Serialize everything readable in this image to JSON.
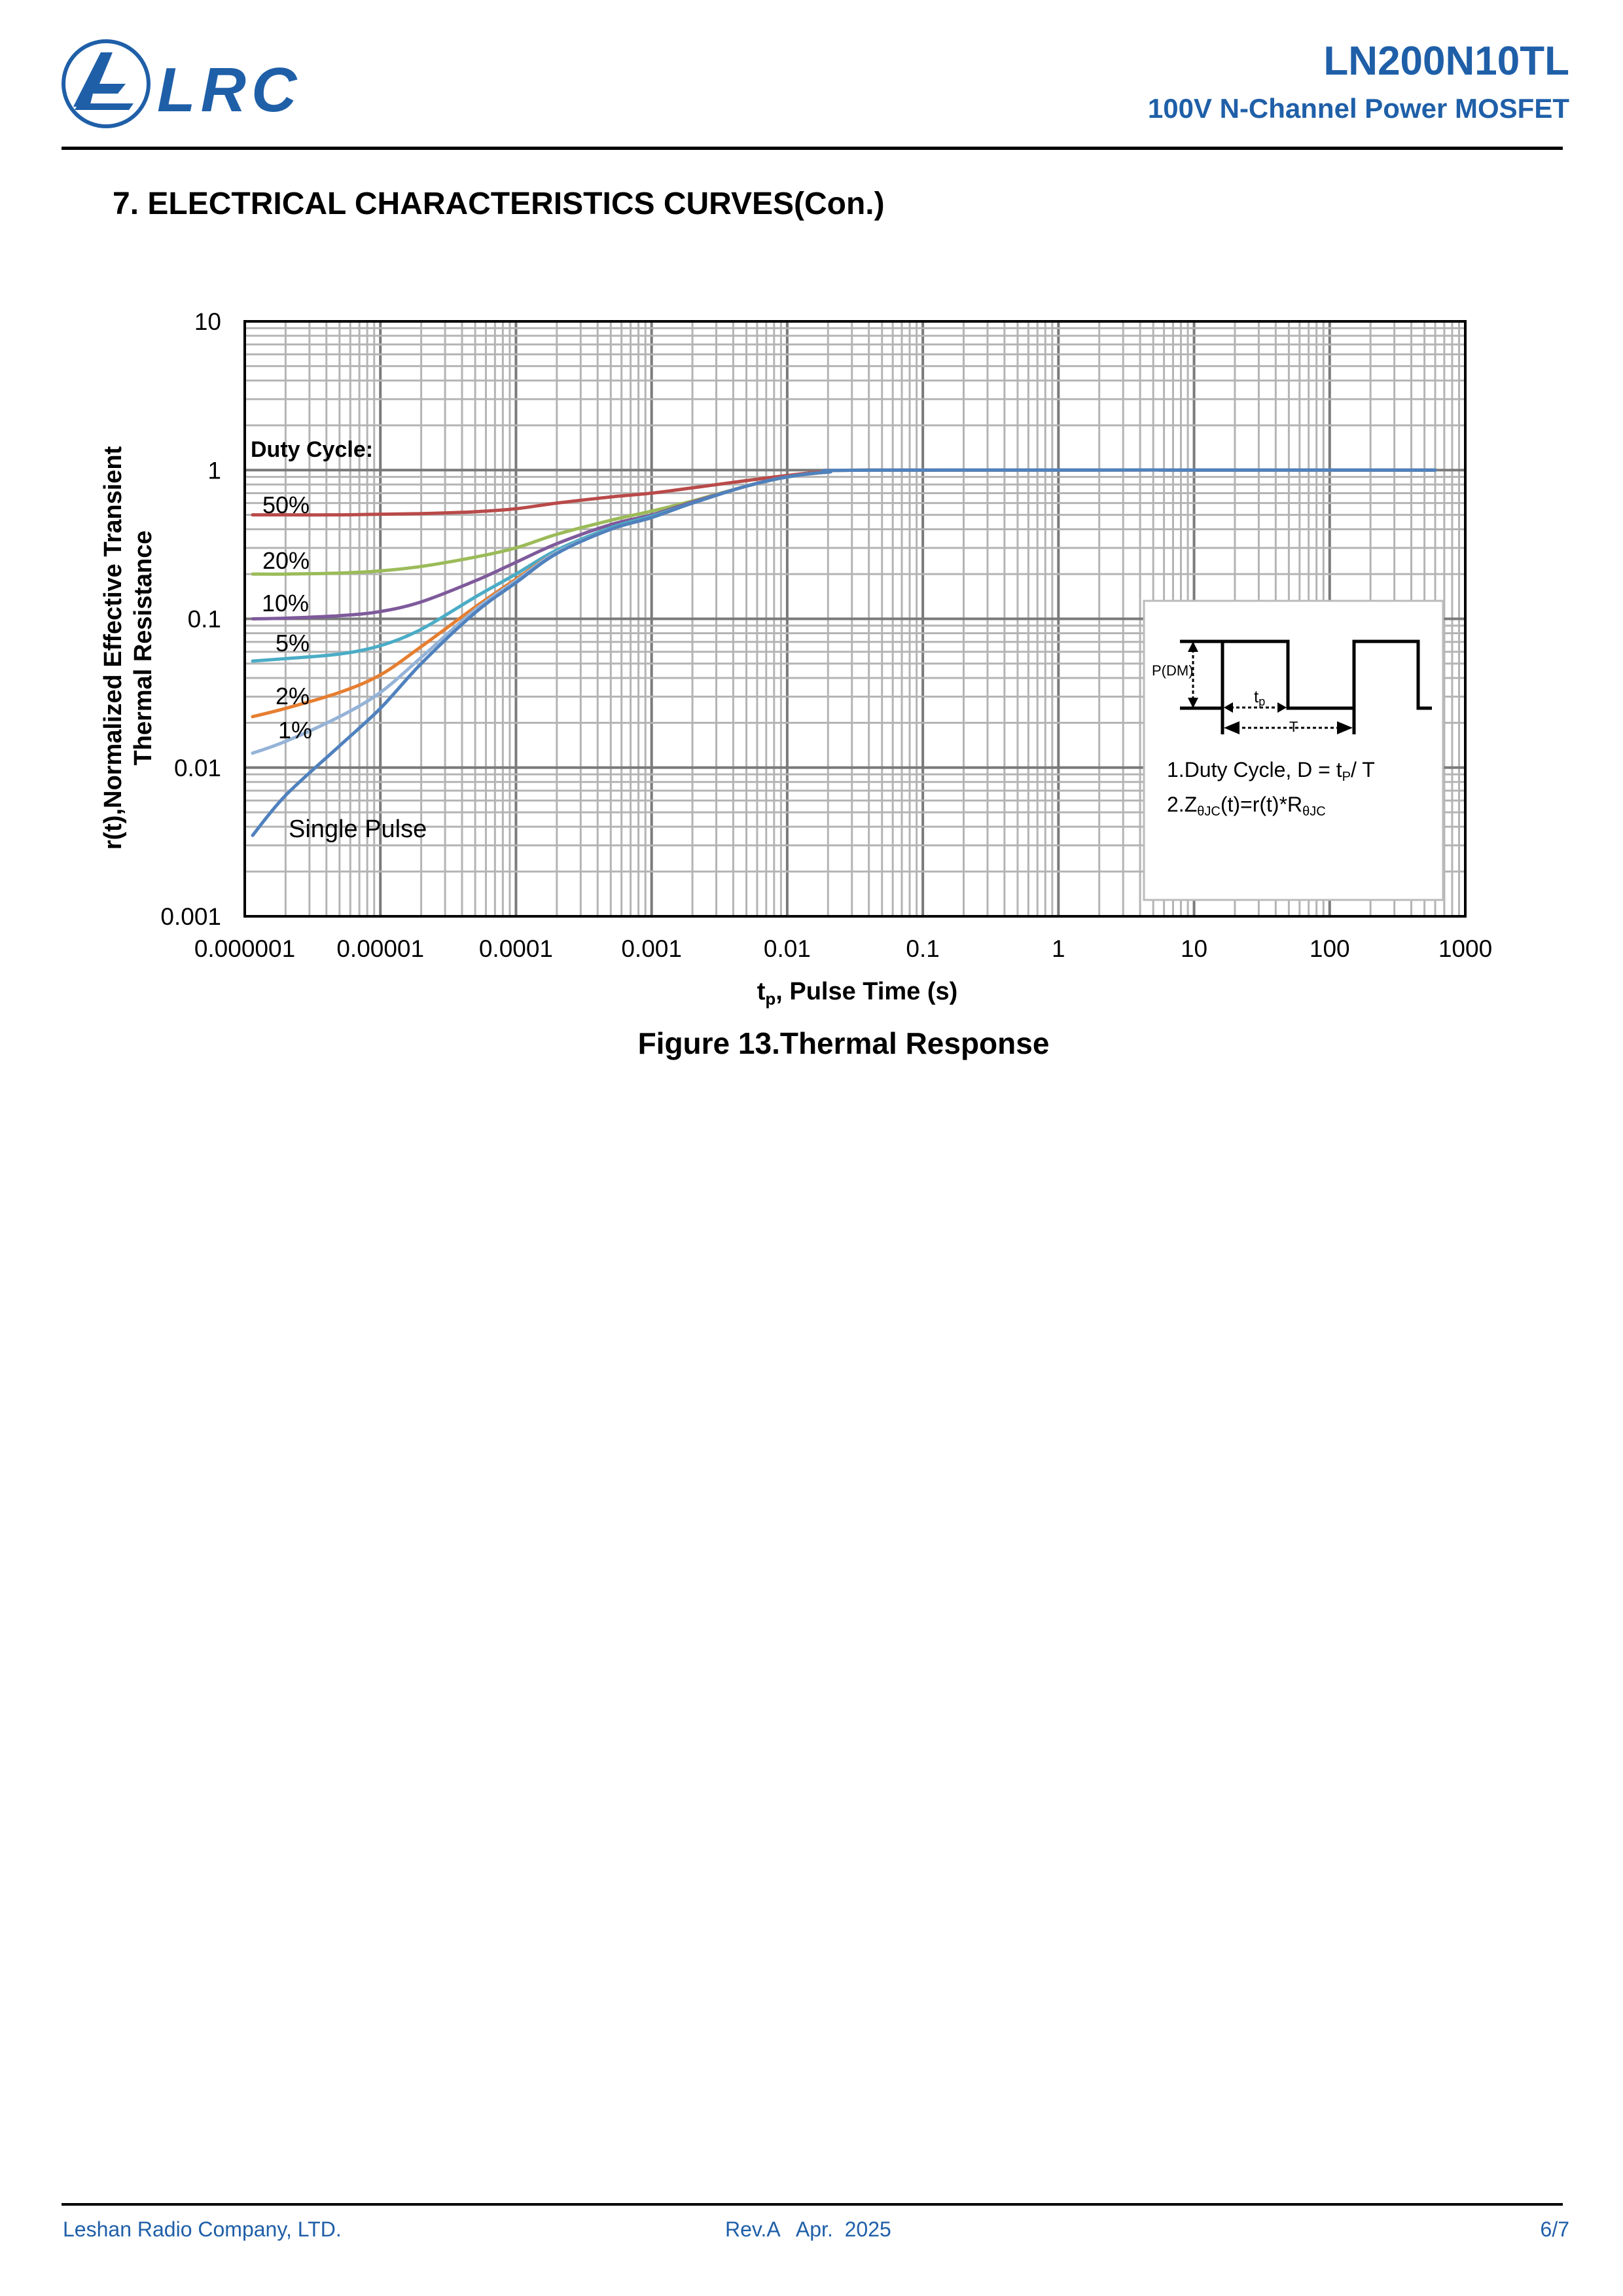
{
  "header": {
    "logo_text": "LRC",
    "part_number": "LN200N10TL",
    "subtitle": "100V N-Channel Power MOSFET"
  },
  "section_title": "7. ELECTRICAL CHARACTERISTICS CURVES(Con.)",
  "chart_data": {
    "type": "line",
    "title": "Figure 13.Thermal Response",
    "xlabel_main": "t",
    "xlabel_sub": "p",
    "xlabel_rest": ", Pulse Time (s)",
    "ylabel_line1": "r(t),Normalized Effective Transient",
    "ylabel_line2": "Thermal Resistance",
    "x_scale": "log",
    "y_scale": "log",
    "xlim": [
      1e-06,
      1000
    ],
    "ylim": [
      0.001,
      10
    ],
    "grid": true,
    "x_ticks": [
      "0.000001",
      "0.00001",
      "0.0001",
      "0.001",
      "0.01",
      "0.1",
      "1",
      "10",
      "100",
      "1000"
    ],
    "y_ticks": [
      "0.001",
      "0.01",
      "0.1",
      "1",
      "10"
    ],
    "legend_title": "Duty Cycle:",
    "x": [
      1e-06,
      2e-06,
      5e-06,
      1e-05,
      2e-05,
      5e-05,
      0.0001,
      0.0002,
      0.0005,
      0.001,
      0.002,
      0.005,
      0.01,
      0.02,
      0.05,
      600
    ],
    "series": [
      {
        "name": "50%",
        "color": "#b94a48",
        "values": [
          0.5,
          0.5,
          0.5,
          0.505,
          0.51,
          0.525,
          0.55,
          0.6,
          0.66,
          0.7,
          0.76,
          0.85,
          0.92,
          0.98,
          1,
          1
        ]
      },
      {
        "name": "20%",
        "color": "#9bbb59",
        "values": [
          0.2,
          0.2,
          0.203,
          0.21,
          0.225,
          0.26,
          0.3,
          0.37,
          0.46,
          0.53,
          0.62,
          0.78,
          0.9,
          0.97,
          1,
          1
        ]
      },
      {
        "name": "10%",
        "color": "#7e5a9b",
        "values": [
          0.1,
          0.101,
          0.105,
          0.112,
          0.13,
          0.18,
          0.24,
          0.32,
          0.43,
          0.5,
          0.61,
          0.78,
          0.9,
          0.97,
          1,
          1
        ]
      },
      {
        "name": "5%",
        "color": "#4bacc6",
        "values": [
          0.052,
          0.054,
          0.058,
          0.066,
          0.085,
          0.14,
          0.2,
          0.29,
          0.41,
          0.49,
          0.6,
          0.78,
          0.9,
          0.97,
          1,
          1
        ]
      },
      {
        "name": "2%",
        "color": "#e67e30",
        "values": [
          0.022,
          0.025,
          0.032,
          0.042,
          0.065,
          0.12,
          0.185,
          0.28,
          0.4,
          0.48,
          0.6,
          0.78,
          0.9,
          0.97,
          1,
          1
        ]
      },
      {
        "name": "1%",
        "color": "#95b3d7",
        "values": [
          0.0125,
          0.015,
          0.022,
          0.032,
          0.055,
          0.115,
          0.18,
          0.28,
          0.4,
          0.48,
          0.6,
          0.78,
          0.9,
          0.97,
          1,
          1
        ]
      },
      {
        "name": "Single Pulse",
        "color": "#4f81bd",
        "values": [
          0.0035,
          0.0065,
          0.014,
          0.025,
          0.05,
          0.11,
          0.175,
          0.275,
          0.4,
          0.48,
          0.6,
          0.78,
          0.9,
          0.97,
          1,
          1
        ]
      }
    ],
    "inset": {
      "pdm_label": "P(DM)",
      "tp_label": "t",
      "tp_sub": "p",
      "period_label": "T",
      "note1_main": "1.Duty Cycle, D = t",
      "note1_sub": "P",
      "note1_end": "/ T",
      "note2_a": "2.Z",
      "note2_sub1": "θJC",
      "note2_b": "(t)=r(t)*R",
      "note2_sub2": "θJC"
    }
  },
  "footer": {
    "company": "Leshan Radio Company, LTD.",
    "revision": "Rev.A   Apr.  2025",
    "page": "6/7"
  }
}
